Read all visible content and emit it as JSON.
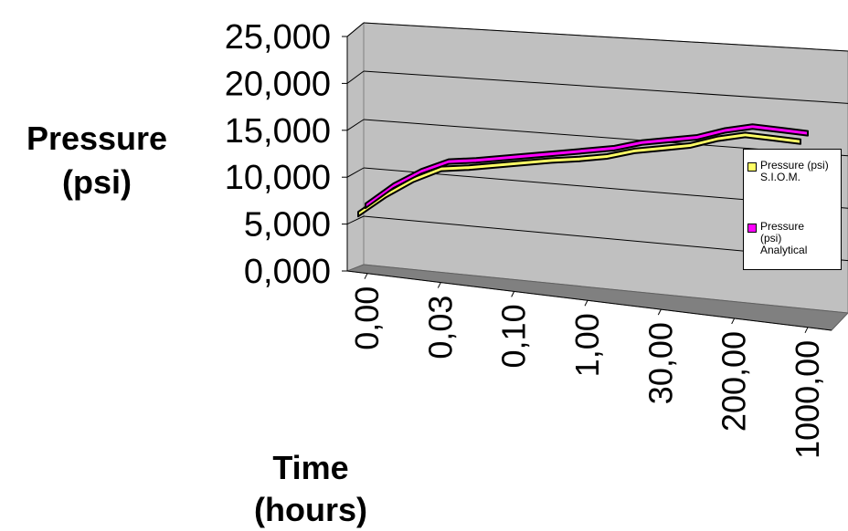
{
  "chart_data": {
    "type": "line",
    "view": "3d",
    "ylabel_lines": [
      "Pressure",
      "(psi)"
    ],
    "xlabel_lines": [
      "Time",
      "(hours)"
    ],
    "ylim": [
      0,
      25000
    ],
    "y_ticks": [
      "0,000",
      "5,000",
      "10,000",
      "15,000",
      "20,000",
      "25,000"
    ],
    "x_tick_labels": [
      "0,00",
      "0,03",
      "0,10",
      "1,00",
      "30,00",
      "200,00",
      "1000,00"
    ],
    "grid": true,
    "legend_position": "right",
    "series": [
      {
        "name": "Pressure (psi) S.I.O.M.",
        "color": "#ffff66",
        "values": [
          7000,
          9200,
          11000,
          12300,
          12600,
          13000,
          13400,
          13800,
          14100,
          14500,
          15200,
          15600,
          16000,
          16800,
          17300,
          17100,
          16900
        ]
      },
      {
        "name": "Pressure (psi) Analytical",
        "color": "#ff00ff",
        "values": [
          7100,
          9400,
          11100,
          12300,
          12600,
          13000,
          13400,
          13800,
          14200,
          14600,
          15300,
          15700,
          16100,
          16900,
          17400,
          17200,
          17000
        ]
      }
    ]
  }
}
